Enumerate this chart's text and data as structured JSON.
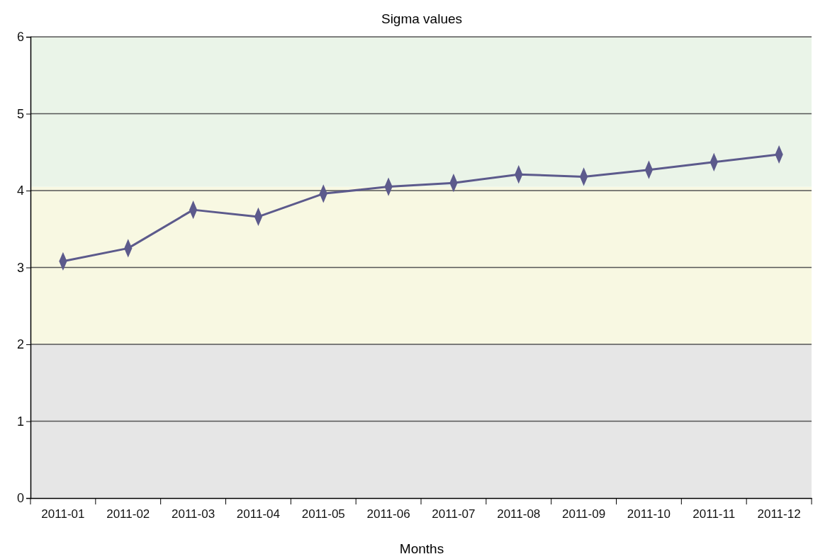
{
  "chart_data": {
    "type": "line",
    "title": "Sigma values",
    "xlabel": "Months",
    "categories": [
      "2011-01",
      "2011-02",
      "2011-03",
      "2011-04",
      "2011-05",
      "2011-06",
      "2011-07",
      "2011-08",
      "2011-09",
      "2011-10",
      "2011-11",
      "2011-12"
    ],
    "series": [
      {
        "color": "#5c5a8c",
        "values": [
          3.08,
          3.25,
          3.75,
          3.66,
          3.96,
          4.05,
          4.1,
          4.21,
          4.18,
          4.27,
          4.37,
          4.47
        ]
      }
    ],
    "ylim": [
      0,
      6
    ],
    "yticks": [
      0,
      1,
      2,
      3,
      4,
      5,
      6
    ],
    "grid": "y",
    "marker": "diamond",
    "line_style": "solid",
    "bands": [
      {
        "axis": "y",
        "from": 0,
        "to": 2,
        "color": "#e6e6e6"
      },
      {
        "axis": "y",
        "from": 2,
        "to": 4.05,
        "color": "#f8f8e2"
      },
      {
        "axis": "y",
        "from": 4.05,
        "to": 6,
        "color": "#eaf4e8"
      }
    ]
  }
}
